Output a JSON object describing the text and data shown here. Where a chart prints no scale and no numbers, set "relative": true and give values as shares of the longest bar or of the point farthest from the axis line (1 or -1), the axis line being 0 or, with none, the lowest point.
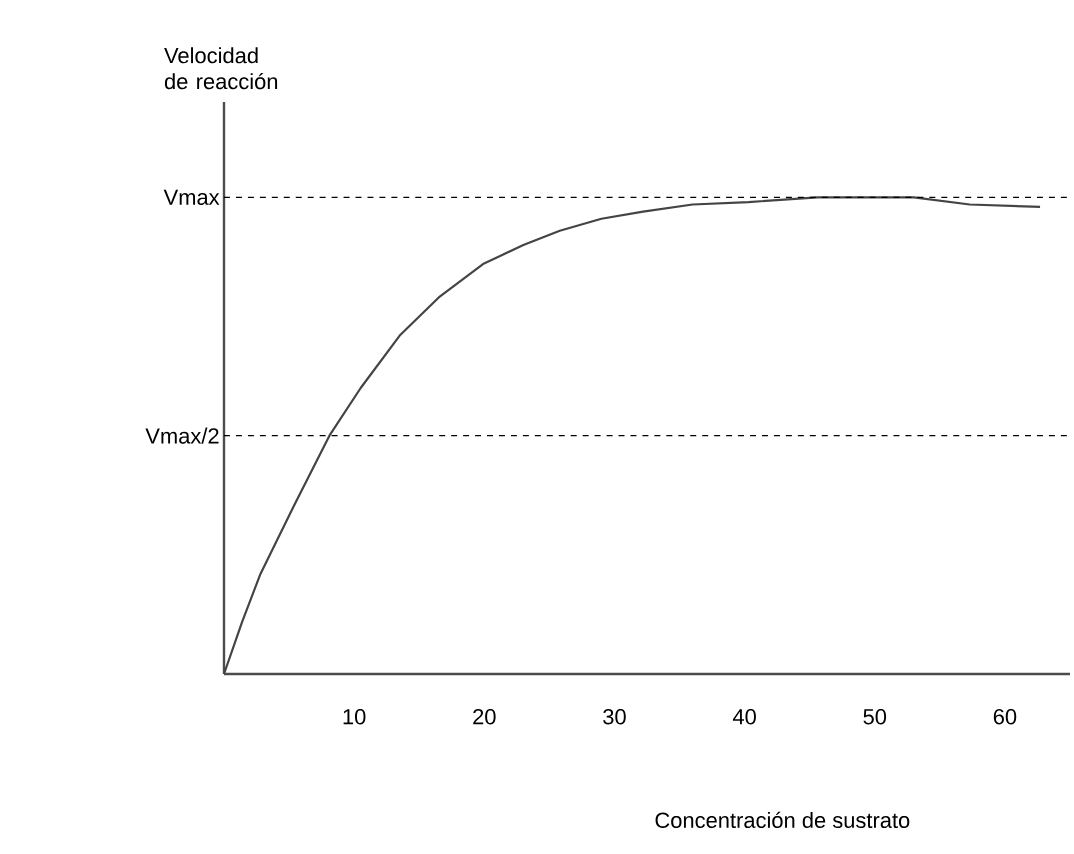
{
  "chart_data": {
    "type": "line",
    "xlabel": "Concentración de sustrato",
    "ylabel": "Velocidad de reacción",
    "relative": true,
    "xlim": [
      0,
      65
    ],
    "xticks": [
      10,
      20,
      30,
      40,
      50,
      60
    ],
    "ref_lines": [
      {
        "axis": "y",
        "value": 1,
        "label": "Vmax",
        "line_style": "dashed"
      },
      {
        "axis": "y",
        "value": 0.5,
        "label": "Vmax/2",
        "line_style": "dashed"
      }
    ],
    "series": [
      {
        "color": "#444444",
        "x": [
          0,
          1.4,
          2.8,
          5.5,
          8.1,
          10.5,
          13.5,
          16.5,
          19.9,
          23,
          25.8,
          29,
          32.2,
          36,
          40.3,
          45.6,
          53,
          57.3,
          62.7
        ],
        "values": [
          0,
          0.11,
          0.21,
          0.36,
          0.5,
          0.6,
          0.71,
          0.79,
          0.86,
          0.9,
          0.93,
          0.955,
          0.97,
          0.985,
          0.99,
          1.0,
          1.0,
          0.985,
          0.98
        ]
      }
    ],
    "grid": false,
    "marker": "none",
    "line_style": "solid"
  }
}
